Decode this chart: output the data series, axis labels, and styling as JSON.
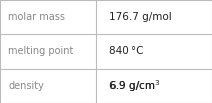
{
  "rows": [
    {
      "label": "molar mass",
      "value": "176.7 g/mol"
    },
    {
      "label": "melting point",
      "value": "840 °C"
    },
    {
      "label": "density",
      "value": "6.9 g/cm³"
    }
  ],
  "background_color": "#ffffff",
  "border_color": "#bbbbbb",
  "label_color": "#888888",
  "value_color": "#222222",
  "label_fontsize": 7.0,
  "value_fontsize": 7.5,
  "col_split": 0.455,
  "fig_width": 2.12,
  "fig_height": 1.03,
  "dpi": 100,
  "density_value": "6.9 g/cm",
  "density_sup": "3"
}
